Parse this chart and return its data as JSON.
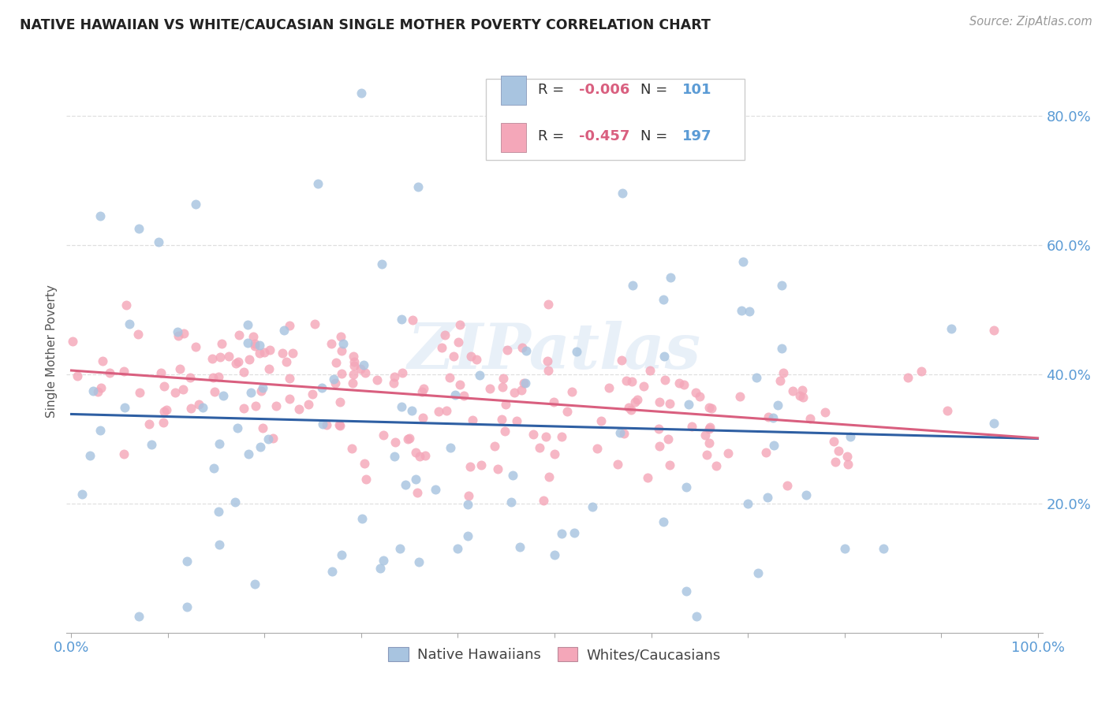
{
  "title": "NATIVE HAWAIIAN VS WHITE/CAUCASIAN SINGLE MOTHER POVERTY CORRELATION CHART",
  "source": "Source: ZipAtlas.com",
  "ylabel": "Single Mother Poverty",
  "legend_label1": "Native Hawaiians",
  "legend_label2": "Whites/Caucasians",
  "watermark": "ZIPatlas",
  "R1": "-0.006",
  "N1": "101",
  "R2": "-0.457",
  "N2": "197",
  "color_nh": "#a8c4e0",
  "color_wc": "#f4a7b9",
  "color_nh_line": "#2e5fa3",
  "color_wc_line": "#d95f7f",
  "title_color": "#222222",
  "axis_color": "#5b9bd5",
  "background_color": "#ffffff",
  "grid_color": "#d8d8d8"
}
